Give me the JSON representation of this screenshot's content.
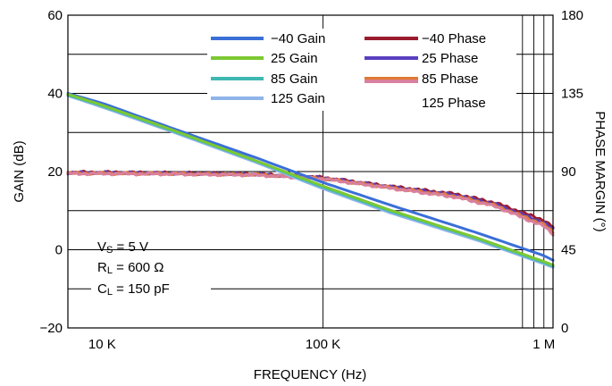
{
  "chart_data": {
    "type": "line",
    "xlabel": "FREQUENCY (Hz)",
    "ylabel_left": "GAIN (dB)",
    "ylabel_right": "PHASE MARGIN (°)",
    "x_scale": "log",
    "xlim": [
      7000,
      1100000
    ],
    "ylim_left": [
      -20,
      60
    ],
    "ylim_right": [
      0,
      180
    ],
    "x_ticks": [
      {
        "value": 10000,
        "label": "10 K"
      },
      {
        "value": 100000,
        "label": "100 K"
      },
      {
        "value": 1000000,
        "label": "1 M"
      }
    ],
    "y_ticks_left": [
      {
        "value": -20,
        "label": "−20"
      },
      {
        "value": 0,
        "label": "0"
      },
      {
        "value": 20,
        "label": "20"
      },
      {
        "value": 40,
        "label": "40"
      },
      {
        "value": 60,
        "label": "60"
      }
    ],
    "y_ticks_right": [
      {
        "value": 0,
        "label": "0"
      },
      {
        "value": 45,
        "label": "45"
      },
      {
        "value": 90,
        "label": "90"
      },
      {
        "value": 135,
        "label": "135"
      },
      {
        "value": 180,
        "label": "180"
      }
    ],
    "grid": true,
    "legend_position": "top-right",
    "annotations": {
      "vs": {
        "main": "V",
        "sub": "S",
        "rest": " = 5 V"
      },
      "rl": {
        "main": "R",
        "sub": "L",
        "rest": " = 600 Ω"
      },
      "cl": {
        "main": "C",
        "sub": "L",
        "rest": " = 150 pF"
      }
    },
    "series": [
      {
        "name": "−40 Gain",
        "axis": "left",
        "color": "#3a6fd8",
        "x": [
          7000,
          10000,
          20000,
          50000,
          100000,
          200000,
          500000,
          1000000,
          1100000
        ],
        "y": [
          40.0,
          37.5,
          31.4,
          23.5,
          17.2,
          11.5,
          4.3,
          -1.5,
          -2.7
        ]
      },
      {
        "name": "25 Gain",
        "axis": "left",
        "color": "#7cc832",
        "x": [
          7000,
          10000,
          20000,
          50000,
          100000,
          200000,
          500000,
          1000000,
          1100000
        ],
        "y": [
          39.8,
          37.0,
          31.0,
          22.7,
          16.3,
          10.2,
          3.0,
          -3.0,
          -3.9
        ]
      },
      {
        "name": "85 Gain",
        "axis": "left",
        "color": "#3fb8b0",
        "x": [
          7000,
          10000,
          20000,
          50000,
          100000,
          200000,
          500000,
          1000000,
          1100000
        ],
        "y": [
          39.6,
          36.8,
          30.8,
          22.6,
          16.0,
          9.9,
          2.8,
          -3.3,
          -4.2
        ]
      },
      {
        "name": "125 Gain",
        "axis": "left",
        "color": "#8fb4ea",
        "x": [
          7000,
          10000,
          20000,
          50000,
          100000,
          200000,
          500000,
          1000000,
          1100000
        ],
        "y": [
          39.4,
          36.5,
          30.5,
          22.3,
          15.6,
          9.5,
          2.4,
          -3.6,
          -4.5
        ]
      },
      {
        "name": "−40 Phase",
        "axis": "right",
        "color": "#9b1b2e",
        "x": [
          7000,
          10000,
          20000,
          50000,
          100000,
          200000,
          400000,
          600000,
          1000000,
          1100000
        ],
        "y": [
          89.5,
          89.5,
          89.2,
          88.6,
          86.5,
          81.5,
          77.0,
          72.0,
          62.0,
          58.0
        ]
      },
      {
        "name": "25 Phase",
        "axis": "right",
        "color": "#5a3fc0",
        "x": [
          7000,
          10000,
          20000,
          50000,
          100000,
          200000,
          400000,
          600000,
          1000000,
          1100000
        ],
        "y": [
          89.3,
          89.3,
          89.0,
          88.4,
          86.3,
          81.2,
          76.4,
          71.2,
          60.5,
          56.5
        ]
      },
      {
        "name": "85 Phase",
        "axis": "right",
        "color": "#e07a34",
        "x": [
          7000,
          10000,
          20000,
          50000,
          100000,
          200000,
          400000,
          600000,
          1000000,
          1100000
        ],
        "y": [
          89.0,
          89.0,
          88.8,
          88.2,
          86.0,
          80.8,
          75.8,
          70.5,
          59.5,
          55.0
        ]
      },
      {
        "name": "125 Phase",
        "axis": "right",
        "color": "#d9809e",
        "x": [
          7000,
          10000,
          20000,
          50000,
          100000,
          200000,
          400000,
          600000,
          1000000,
          1100000
        ],
        "y": [
          88.8,
          88.8,
          88.6,
          88.0,
          85.8,
          80.5,
          75.2,
          70.0,
          58.5,
          54.0
        ]
      }
    ]
  }
}
